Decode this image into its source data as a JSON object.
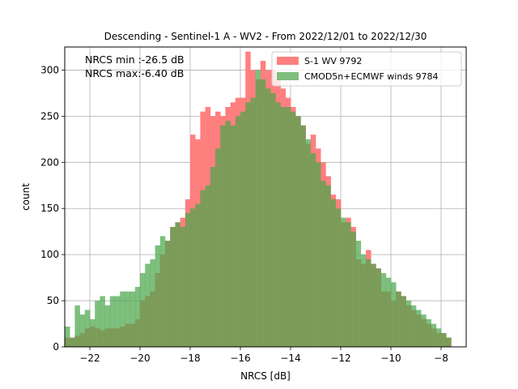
{
  "chart_data": {
    "type": "histogram",
    "title": "Descending - Sentinel-1 A - WV2 - From 2022/12/01 to 2022/12/30",
    "xlabel": "NRCS [dB]",
    "ylabel": "count",
    "xlim": [
      -23.0,
      -7.0
    ],
    "ylim": [
      0,
      325
    ],
    "xticks": [
      -22,
      -20,
      -18,
      -16,
      -14,
      -12,
      -10,
      -8
    ],
    "xtick_labels": [
      "−22",
      "−20",
      "−18",
      "−16",
      "−14",
      "−12",
      "−10",
      "−8"
    ],
    "yticks": [
      0,
      50,
      100,
      150,
      200,
      250,
      300
    ],
    "ytick_labels": [
      "0",
      "50",
      "100",
      "150",
      "200",
      "250",
      "300"
    ],
    "grid": true,
    "legend_position": "top-right",
    "annotations": [
      "NRCS min :-26.5 dB",
      "NRCS max:-6.40 dB"
    ],
    "bin_start": -23.0,
    "bin_width": 0.2,
    "series": [
      {
        "name": "S-1 WV 9792",
        "color": "#ff7f7f",
        "values": [
          10,
          10,
          12,
          15,
          20,
          22,
          20,
          18,
          20,
          20,
          20,
          22,
          25,
          25,
          30,
          50,
          55,
          60,
          80,
          100,
          115,
          130,
          135,
          140,
          160,
          230,
          225,
          255,
          260,
          250,
          255,
          250,
          260,
          265,
          270,
          270,
          320,
          300,
          290,
          310,
          300,
          300,
          290,
          280,
          270,
          260,
          250,
          240,
          220,
          230,
          215,
          200,
          185,
          165,
          160,
          135,
          140,
          130,
          95,
          90,
          105,
          90,
          85,
          60,
          60,
          50,
          60,
          55,
          45,
          40,
          35,
          30,
          25,
          20,
          15,
          15,
          10
        ]
      },
      {
        "name": "CMOD5n+ECMWF winds 9784",
        "color": "#4ca64c",
        "values": [
          22,
          10,
          45,
          35,
          40,
          30,
          50,
          55,
          45,
          55,
          55,
          60,
          60,
          60,
          65,
          80,
          90,
          95,
          110,
          120,
          115,
          130,
          135,
          130,
          145,
          150,
          155,
          170,
          175,
          195,
          215,
          240,
          245,
          240,
          250,
          255,
          265,
          270,
          300,
          290,
          280,
          275,
          265,
          260,
          260,
          255,
          250,
          240,
          225,
          210,
          200,
          180,
          175,
          160,
          150,
          140,
          135,
          125,
          115,
          100,
          95,
          90,
          85,
          80,
          75,
          70,
          60,
          55,
          50,
          45,
          40,
          35,
          30,
          25,
          20,
          15,
          10
        ]
      }
    ]
  }
}
